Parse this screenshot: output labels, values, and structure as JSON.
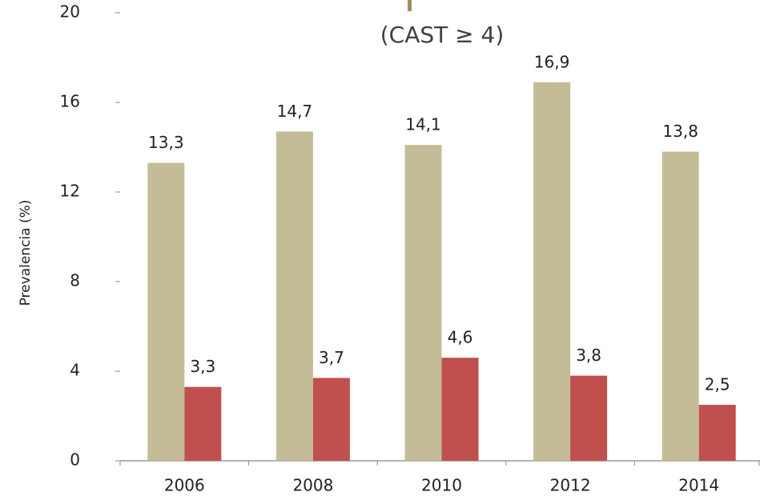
{
  "chart_data": {
    "type": "bar",
    "title": "(CAST ≥ 4)",
    "y_label": "Prevalencia (%)",
    "categories": [
      "2006",
      "2008",
      "2010",
      "2012",
      "2014"
    ],
    "series": [
      {
        "color": "#c4bc96",
        "values": [
          13.3,
          14.7,
          14.1,
          16.9,
          13.8
        ],
        "value_labels": [
          "13,3",
          "14,7",
          "14,1",
          "16,9",
          "13,8"
        ]
      },
      {
        "color": "#c0504d",
        "values": [
          3.3,
          3.7,
          4.6,
          3.8,
          2.5
        ],
        "value_labels": [
          "3,3",
          "3,7",
          "4,6",
          "3,8",
          "2,5"
        ]
      }
    ],
    "ylim": [
      0,
      20
    ],
    "yticks": [
      0,
      4,
      8,
      12,
      16,
      20
    ]
  }
}
